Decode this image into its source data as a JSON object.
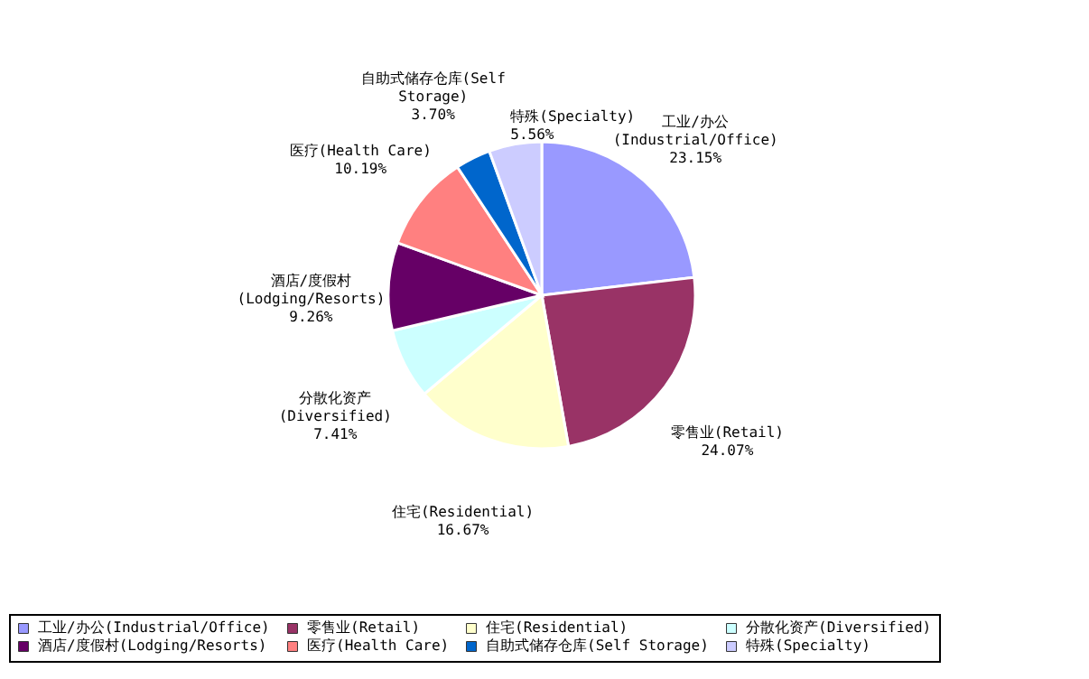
{
  "chart_data": {
    "type": "pie",
    "categories": [
      "工业/办公(Industrial/Office)",
      "零售业(Retail)",
      "住宅(Residential)",
      "分散化资产(Diversified)",
      "酒店/度假村(Lodging/Resorts)",
      "医疗(Health Care)",
      "自助式储存仓库(Self Storage)",
      "特殊(Specialty)"
    ],
    "values": [
      23.15,
      24.07,
      16.67,
      7.41,
      9.26,
      10.19,
      3.7,
      5.56
    ],
    "value_labels": [
      "23.15%",
      "24.07%",
      "16.67%",
      "7.41%",
      "9.26%",
      "10.19%",
      "3.70%",
      "5.56%"
    ],
    "colors": [
      "#9999ff",
      "#993366",
      "#ffffcc",
      "#ccffff",
      "#660066",
      "#ff8080",
      "#0066cc",
      "#ccccff"
    ],
    "legend": "bottom"
  }
}
